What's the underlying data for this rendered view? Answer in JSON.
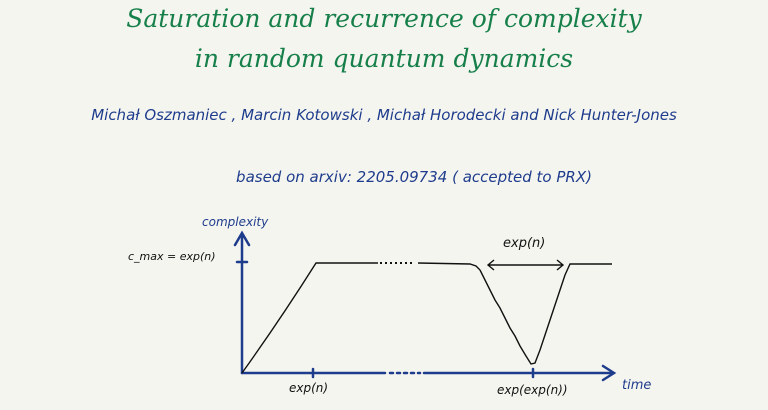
{
  "title": {
    "line1": "Saturation and recurrence of complexity",
    "line2": "in random quantum dynamics"
  },
  "authors": "Michał Oszmaniec , Marcin Kotowski , Michał Horodecki and Nick Hunter-Jones",
  "reference": "based on arxiv: 2205.09734   ( accepted to PRX)",
  "colors": {
    "title": "#17804a",
    "text": "#1e3c8c",
    "curve": "#111111",
    "background": "#f5f5f0"
  },
  "diagram": {
    "y_axis_label": "complexity",
    "x_axis_label": "time",
    "y_tick_label": "c_max = exp(n)",
    "x_tick_labels": [
      "exp(n)",
      "exp(exp(n))"
    ],
    "recurrence_width_label": "exp(n)"
  }
}
